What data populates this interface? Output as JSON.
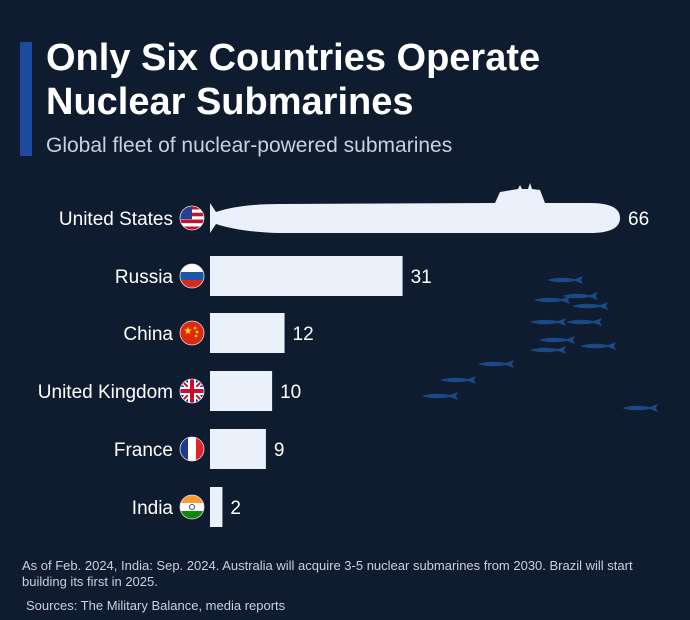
{
  "header": {
    "title": "Only Six Countries Operate Nuclear Submarines",
    "subtitle": "Global fleet of nuclear-powered submarines"
  },
  "footer": {
    "note": "As of Feb. 2024, India: Sep. 2024. Australia will acquire 3-5 nuclear submarines from 2030. Brazil will start building its first in 2025.",
    "source": "Sources: The Military Balance, media reports"
  },
  "colors": {
    "background": "#0f1b2e",
    "bar": "#eaf1fb",
    "accent": "#1e4a9e",
    "fish": "#1a4a86"
  },
  "chart_data": {
    "type": "bar",
    "orientation": "horizontal",
    "title": "Only Six Countries Operate Nuclear Submarines",
    "subtitle": "Global fleet of nuclear-powered submarines",
    "categories": [
      "United States",
      "Russia",
      "China",
      "United Kingdom",
      "France",
      "India"
    ],
    "values": [
      66,
      31,
      12,
      10,
      9,
      2
    ],
    "flags": [
      "us-flag-icon",
      "russia-flag-icon",
      "china-flag-icon",
      "uk-flag-icon",
      "france-flag-icon",
      "india-flag-icon"
    ],
    "first_bar_shape": "submarine-silhouette",
    "data_labels": true,
    "grid": false,
    "legend": "none"
  }
}
